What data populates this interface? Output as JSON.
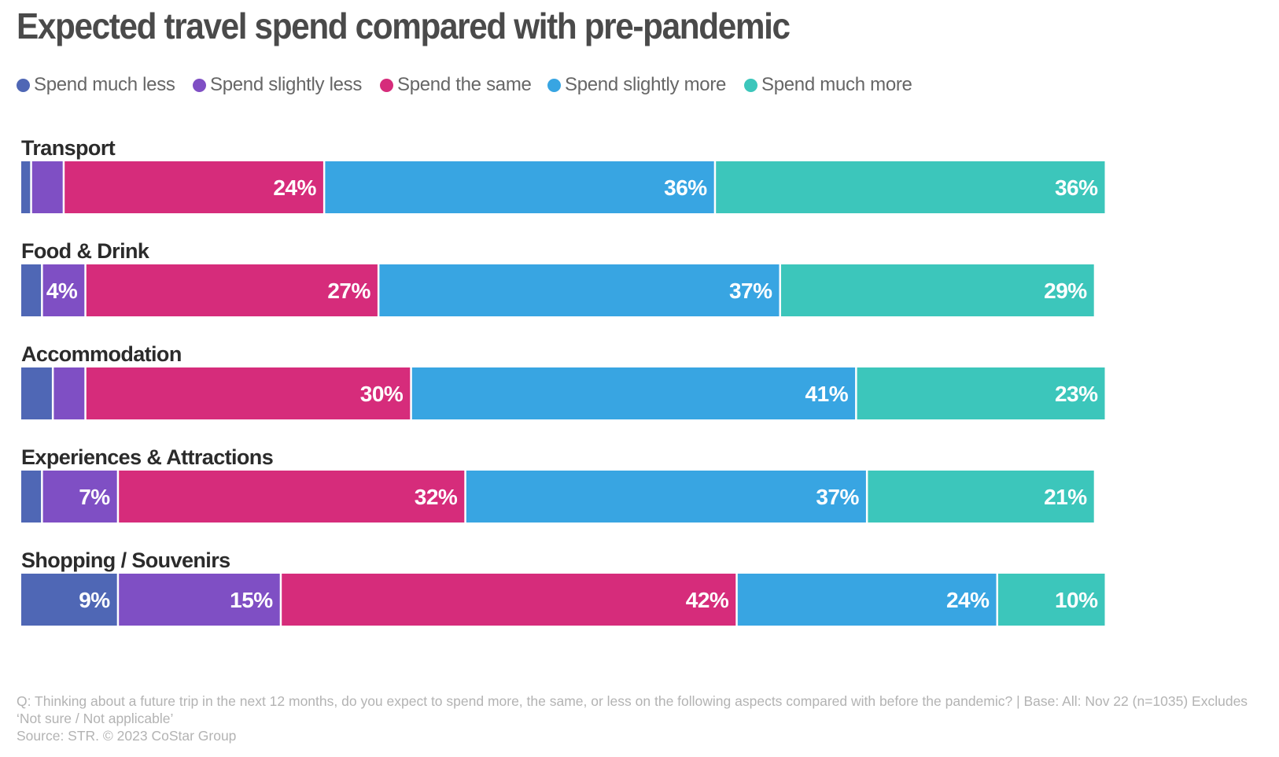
{
  "title": "Expected travel spend compared with pre-pandemic",
  "footnote": {
    "question": "Q: Thinking about a future trip in the next 12 months, do you expect to spend more, the same, or less on the following aspects compared with before the pandemic? | Base: All: Nov 22 (n=1035) Excludes ‘Not sure / Not applicable’",
    "source": "Source: STR. © 2023 CoStar Group"
  },
  "chart_data": {
    "type": "bar",
    "orientation": "horizontal",
    "stacked": true,
    "unit": "%",
    "legend_position": "top",
    "categories": [
      "Transport",
      "Food & Drink",
      "Accommodation",
      "Experiences & Attractions",
      "Shopping / Souvenirs"
    ],
    "series": [
      {
        "name": "Spend much less",
        "color": "#4f67b5",
        "values": [
          1,
          2,
          3,
          2,
          9
        ]
      },
      {
        "name": "Spend slightly less",
        "color": "#7f4fc4",
        "values": [
          3,
          4,
          3,
          7,
          15
        ]
      },
      {
        "name": "Spend the same",
        "color": "#d62c7b",
        "values": [
          24,
          27,
          30,
          32,
          42
        ]
      },
      {
        "name": "Spend slightly more",
        "color": "#38a5e2",
        "values": [
          36,
          37,
          41,
          37,
          24
        ]
      },
      {
        "name": "Spend much more",
        "color": "#3cc6bb",
        "values": [
          36,
          29,
          23,
          21,
          10
        ]
      }
    ],
    "data_labels": [
      [
        null,
        null,
        "24%",
        "36%",
        "36%"
      ],
      [
        null,
        "4%",
        "27%",
        "37%",
        "29%"
      ],
      [
        null,
        null,
        "30%",
        "41%",
        "23%"
      ],
      [
        null,
        "7%",
        "32%",
        "37%",
        "21%"
      ],
      [
        "9%",
        "15%",
        "42%",
        "24%",
        "10%"
      ]
    ],
    "xlim": [
      0,
      100
    ]
  }
}
